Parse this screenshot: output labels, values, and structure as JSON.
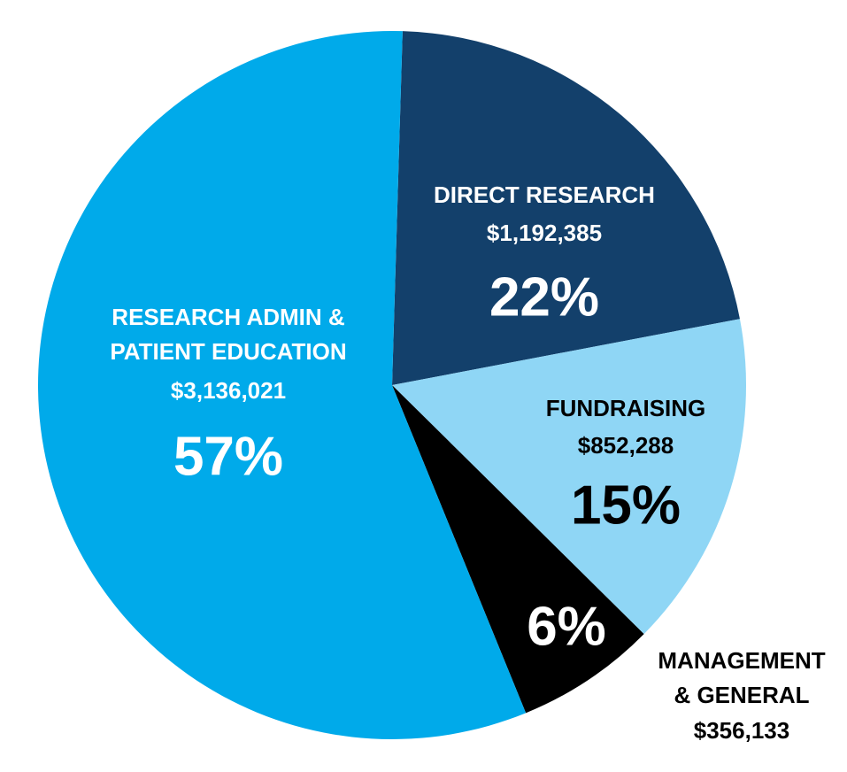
{
  "chart_data": {
    "type": "pie",
    "categories": [
      [
        "DIRECT RESEARCH"
      ],
      [
        "FUNDRAISING"
      ],
      [
        "MANAGEMENT",
        "& GENERAL"
      ],
      [
        "RESEARCH ADMIN &",
        "PATIENT EDUCATION"
      ]
    ],
    "values": [
      1192385,
      852288,
      356133,
      3136021
    ],
    "value_labels": [
      "$1,192,385",
      "$852,288",
      "$356,133",
      "$3,136,021"
    ],
    "percents": [
      22,
      15,
      6,
      57
    ],
    "percent_labels": [
      "22%",
      "15%",
      "6%",
      "57%"
    ],
    "colors": [
      "#13406b",
      "#8fd6f5",
      "#000000",
      "#00aaea"
    ]
  }
}
